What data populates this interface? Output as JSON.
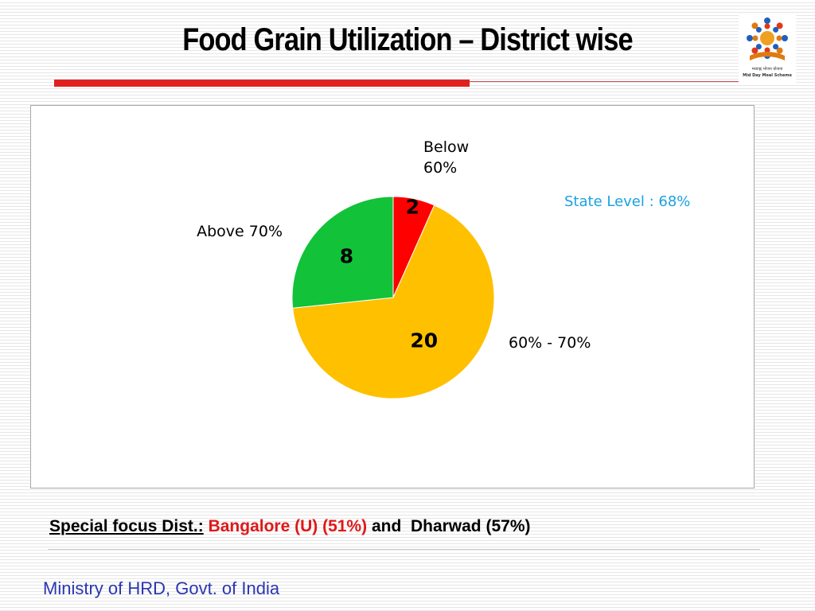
{
  "slide": {
    "title": "Food Grain Utilization – District wise",
    "logo_text_line1": "मध्याह्न भोजन योजना",
    "logo_text_line2": "Mid Day Meal Scheme",
    "state_level": "State Level : 68%",
    "focus_label": "Special focus Dist.:",
    "focus_district_1": "Bangalore (U) (51%)",
    "focus_connector": "and",
    "focus_district_2": "Dharwad (57%)",
    "footer": "Ministry of HRD, Govt. of India"
  },
  "colors": {
    "accent_red": "#e02020",
    "state_level_text": "#1ba1e2",
    "focus_highlight": "#e01818",
    "footer_text": "#2a36b0"
  },
  "chart_data": {
    "type": "pie",
    "title": "",
    "slices": [
      {
        "label": "Below 60%",
        "label_lines": [
          "Below",
          "60%"
        ],
        "value": 2,
        "value_label": "2",
        "color": "#ff0000"
      },
      {
        "label": "60% - 70%",
        "label_lines": [
          "60% - 70%"
        ],
        "value": 20,
        "value_label": "20",
        "color": "#ffc000"
      },
      {
        "label": "Above 70%",
        "label_lines": [
          "Above 70%"
        ],
        "value": 8,
        "value_label": "8",
        "color": "#12c238"
      }
    ],
    "start_angle_deg": 0,
    "direction": "clockwise",
    "legend": "none"
  }
}
